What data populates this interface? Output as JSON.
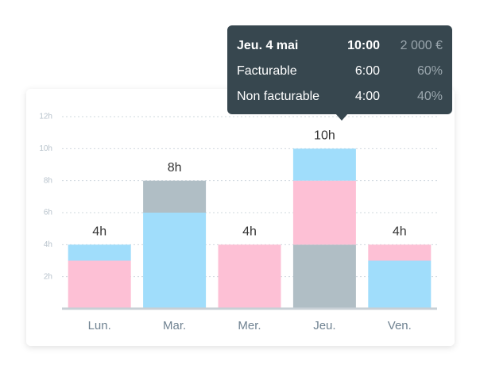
{
  "chart_data": {
    "type": "stacked-bar",
    "categories": [
      "Lun.",
      "Mar.",
      "Mer.",
      "Jeu.",
      "Ven."
    ],
    "segments": [
      [
        {
          "color": "#fdc0d5",
          "value": 3
        },
        {
          "color": "#a0ddfb",
          "value": 1
        }
      ],
      [
        {
          "color": "#a0ddfb",
          "value": 6
        },
        {
          "color": "#b0bec5",
          "value": 2
        }
      ],
      [
        {
          "color": "#fdc0d5",
          "value": 4
        }
      ],
      [
        {
          "color": "#b0bec5",
          "value": 4
        },
        {
          "color": "#fdc0d5",
          "value": 4
        },
        {
          "color": "#a0ddfb",
          "value": 2
        }
      ],
      [
        {
          "color": "#a0ddfb",
          "value": 3
        },
        {
          "color": "#fdc0d5",
          "value": 1
        }
      ]
    ],
    "totals": {
      "values": [
        4,
        8,
        4,
        10,
        4
      ],
      "value_labels": [
        "4h",
        "8h",
        "4h",
        "10h",
        "4h"
      ]
    },
    "ylim": [
      0,
      12
    ],
    "yticks": [
      {
        "value": 2,
        "label": "2h"
      },
      {
        "value": 4,
        "label": "4h"
      },
      {
        "value": 6,
        "label": "6h"
      },
      {
        "value": 8,
        "label": "8h"
      },
      {
        "value": 10,
        "label": "10h"
      },
      {
        "value": 12,
        "label": "12h"
      }
    ],
    "grid": true
  },
  "tooltip": {
    "title": [
      "Jeu. 4 mai",
      "10:00",
      "2 000 €"
    ],
    "rows": [
      [
        "Facturable",
        "6:00",
        "60%"
      ],
      [
        "Non facturable",
        "4:00",
        "40%"
      ]
    ]
  }
}
